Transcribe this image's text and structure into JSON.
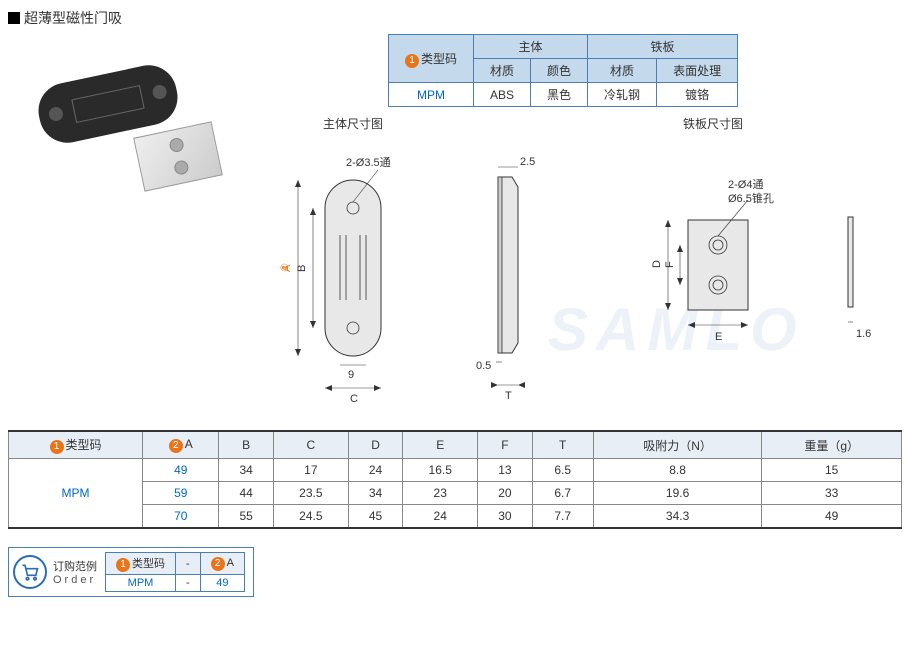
{
  "title": "超薄型磁性门吸",
  "spec_table": {
    "header_type_code": "类型码",
    "header_body": "主体",
    "header_plate": "铁板",
    "sub_material": "材质",
    "sub_color": "颜色",
    "sub_material2": "材质",
    "sub_surface": "表面处理",
    "model": "MPM",
    "body_material": "ABS",
    "body_color": "黑色",
    "plate_material": "冷轧钢",
    "plate_surface": "镀铬"
  },
  "diagram_titles": {
    "body": "主体尺寸图",
    "plate": "铁板尺寸图"
  },
  "diagram_labels": {
    "hole_body": "2-Ø3.5通",
    "plate_hole1": "2-Ø4通",
    "plate_hole2": "Ø6.5锥孔",
    "dim_A": "A",
    "dim_B": "B",
    "dim_C": "C",
    "dim_D": "D",
    "dim_E": "E",
    "dim_F": "F",
    "dim_T": "T",
    "dim_2_5": "2.5",
    "dim_0_5": "0.5",
    "dim_9": "9",
    "dim_1_6": "1.6",
    "badge2": "2"
  },
  "main_table": {
    "columns": [
      "类型码",
      "A",
      "B",
      "C",
      "D",
      "E",
      "F",
      "T",
      "吸附力（N）",
      "重量（g）"
    ],
    "badge_col0": "1",
    "badge_col1": "2",
    "model": "MPM",
    "rows": [
      [
        "49",
        "34",
        "17",
        "24",
        "16.5",
        "13",
        "6.5",
        "8.8",
        "15"
      ],
      [
        "59",
        "44",
        "23.5",
        "34",
        "23",
        "20",
        "6.7",
        "19.6",
        "33"
      ],
      [
        "70",
        "55",
        "24.5",
        "45",
        "24",
        "30",
        "7.7",
        "34.3",
        "49"
      ]
    ]
  },
  "order": {
    "label_cn": "订购范例",
    "label_en": "Order",
    "col1_header": "类型码",
    "col2_header": "A",
    "sep": "-",
    "val1": "MPM",
    "val2": "49",
    "badge1": "1",
    "badge2": "2"
  },
  "colors": {
    "table_border": "#4a7fb5",
    "header_bg": "#c5d9ec",
    "badge_orange": "#e8751a",
    "link_blue": "#0066cc"
  }
}
